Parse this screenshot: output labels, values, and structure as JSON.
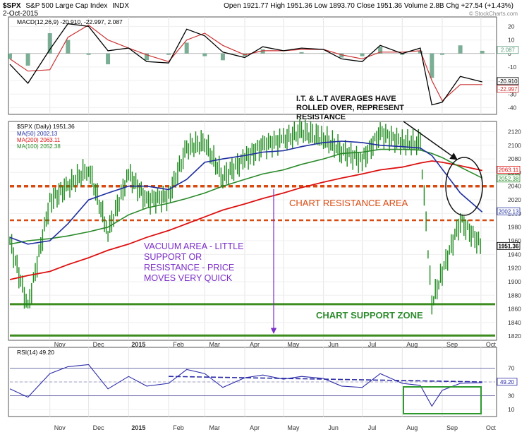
{
  "header": {
    "symbol": "$SPX",
    "name": "S&P 500 Large Cap Index",
    "exchange": "INDX",
    "date": "2-Oct-2015",
    "quote": "Open 1921.77  High 1951.36  Low 1893.70  Close 1951.36  Volume 2.8B  Chg +27.54 (+1.43%)",
    "watermark": "© StockCharts.com"
  },
  "colors": {
    "price_bar": "#1e8a1e",
    "ma50": "#1f2f9f",
    "ma200": "#dd1111",
    "ma100": "#2a8a2a",
    "macd_line": "#000000",
    "macd_signal": "#cc3333",
    "histogram": "#5a9a7a",
    "rsi_line": "#2a2aa8",
    "resistance_line": "#d84a10",
    "support_line": "#3c8c1e",
    "vacuum_text": "#7b2ec8",
    "resistance_text": "#d84a10",
    "support_text": "#2e8b2e",
    "black_ann": "#111111"
  },
  "panels": {
    "macd": {
      "legend": "MACD(12,26,9) -20.910, -22.997, 2.087"
    },
    "price": {
      "legend": "$SPX (Daily) 1951.36",
      "ma_legend": [
        "MA(50) 2002.13",
        "MA(200) 2063.11",
        "MA(100) 2052.38"
      ]
    },
    "rsi": {
      "legend": "RSI(14) 49.20"
    }
  },
  "annotations": {
    "averages": [
      "I.T. & L.T AVERAGES HAVE",
      "ROLLED OVER, REPRESENT",
      "RESISTANCE"
    ],
    "resistance": "CHART RESISTANCE AREA",
    "vacuum": [
      "VACUUM AREA - LITTLE",
      "SUPPORT OR",
      "RESISTANCE - PRICE",
      "MOVES VERY QUICK"
    ],
    "support": "CHART SUPPORT ZONE"
  },
  "x_axis_labels": [
    "Nov",
    "Dec",
    "2015",
    "Feb",
    "Mar",
    "Apr",
    "May",
    "Jun",
    "Jul",
    "Aug",
    "Sep",
    "Oct"
  ],
  "chart_data": [
    {
      "type": "line",
      "panel": "MACD(12,26,9)",
      "y_ticks": [
        "20",
        "10",
        "0",
        "-10",
        "-20",
        "-30",
        "-40"
      ],
      "ylim": [
        -45,
        27
      ],
      "side_values": {
        "histogram": "2.087",
        "macd": "-20.910",
        "signal": "-22.997"
      },
      "x": [
        "2014-10-01",
        "2014-10-15",
        "2014-11-01",
        "2014-11-15",
        "2014-12-01",
        "2014-12-16",
        "2015-01-01",
        "2015-01-15",
        "2015-02-01",
        "2015-02-15",
        "2015-03-01",
        "2015-03-15",
        "2015-04-01",
        "2015-04-15",
        "2015-05-01",
        "2015-05-15",
        "2015-06-01",
        "2015-06-15",
        "2015-07-01",
        "2015-07-15",
        "2015-08-01",
        "2015-08-15",
        "2015-08-24",
        "2015-09-01",
        "2015-09-15",
        "2015-10-02"
      ],
      "series": [
        {
          "name": "MACD",
          "values": [
            -8,
            -22,
            3,
            22,
            20,
            2,
            4,
            -6,
            -7,
            18,
            13,
            1,
            -3,
            5,
            2,
            4,
            3,
            -4,
            -6,
            6,
            0,
            4,
            -38,
            -36,
            -17,
            -21
          ]
        },
        {
          "name": "Signal",
          "values": [
            -4,
            -13,
            -12,
            12,
            21,
            10,
            4,
            -1,
            -6,
            10,
            15,
            6,
            -1,
            2,
            2,
            3,
            3,
            -1,
            -4,
            1,
            1,
            2,
            -20,
            -35,
            -23,
            -23
          ]
        }
      ]
    },
    {
      "type": "line",
      "panel": "$SPX (Daily)",
      "y_ticks": [
        "2120",
        "2100",
        "2080",
        "2060",
        "2040",
        "2020",
        "2000",
        "1980",
        "1960",
        "1940",
        "1920",
        "1900",
        "1880",
        "1860",
        "1840",
        "1820"
      ],
      "ylim": [
        1814,
        2135
      ],
      "side_values": {
        "ma200": "2063.11",
        "ma100": "2052.38",
        "ma50": "2002.13",
        "close": "1951.36"
      },
      "resistance_levels": [
        2040,
        1990
      ],
      "support_levels": [
        1867,
        1821
      ],
      "x": [
        "2014-10-01",
        "2014-10-15",
        "2014-11-01",
        "2014-11-15",
        "2014-12-01",
        "2014-12-16",
        "2015-01-01",
        "2015-01-15",
        "2015-02-01",
        "2015-02-15",
        "2015-03-01",
        "2015-03-15",
        "2015-04-01",
        "2015-04-15",
        "2015-05-01",
        "2015-05-15",
        "2015-06-01",
        "2015-06-15",
        "2015-07-01",
        "2015-07-15",
        "2015-08-01",
        "2015-08-15",
        "2015-08-24",
        "2015-09-01",
        "2015-09-15",
        "2015-10-02"
      ],
      "series": [
        {
          "name": "$SPX",
          "values": [
            1960,
            1862,
            2018,
            2040,
            2066,
            1972,
            2058,
            2019,
            2025,
            2096,
            2104,
            2053,
            2080,
            2100,
            2108,
            2120,
            2110,
            2092,
            2078,
            2118,
            2104,
            2102,
            1868,
            1914,
            1990,
            1951
          ]
        },
        {
          "name": "MA(50)",
          "values": [
            1965,
            1955,
            1960,
            1985,
            2020,
            2030,
            2040,
            2040,
            2035,
            2050,
            2075,
            2080,
            2085,
            2090,
            2092,
            2098,
            2104,
            2106,
            2104,
            2100,
            2098,
            2096,
            2085,
            2065,
            2030,
            2002
          ]
        },
        {
          "name": "MA(200)",
          "values": [
            1903,
            1909,
            1915,
            1925,
            1935,
            1946,
            1955,
            1965,
            1975,
            1985,
            1995,
            2005,
            2014,
            2022,
            2030,
            2038,
            2046,
            2052,
            2058,
            2064,
            2068,
            2074,
            2077,
            2075,
            2070,
            2063
          ]
        },
        {
          "name": "MA(100)",
          "values": [
            1955,
            1960,
            1963,
            1967,
            1973,
            1980,
            1998,
            2008,
            2015,
            2022,
            2030,
            2040,
            2050,
            2058,
            2064,
            2072,
            2080,
            2088,
            2090,
            2094,
            2094,
            2093,
            2088,
            2082,
            2068,
            2052
          ]
        }
      ]
    },
    {
      "type": "line",
      "panel": "RSI(14)",
      "y_ticks": [
        "70",
        "50",
        "30",
        "10"
      ],
      "ylim": [
        0,
        100
      ],
      "side_value": "49.20",
      "x": [
        "2014-10-01",
        "2014-10-15",
        "2014-11-01",
        "2014-11-15",
        "2014-12-01",
        "2014-12-16",
        "2015-01-01",
        "2015-01-15",
        "2015-02-01",
        "2015-02-15",
        "2015-03-01",
        "2015-03-15",
        "2015-04-01",
        "2015-04-15",
        "2015-05-01",
        "2015-05-15",
        "2015-06-01",
        "2015-06-15",
        "2015-07-01",
        "2015-07-15",
        "2015-08-01",
        "2015-08-15",
        "2015-08-24",
        "2015-09-01",
        "2015-09-15",
        "2015-10-02"
      ],
      "series": [
        {
          "name": "RSI(14)",
          "values": [
            40,
            28,
            62,
            72,
            75,
            40,
            58,
            44,
            48,
            68,
            62,
            42,
            56,
            60,
            54,
            58,
            55,
            44,
            42,
            62,
            48,
            45,
            15,
            38,
            48,
            49
          ]
        }
      ]
    }
  ]
}
